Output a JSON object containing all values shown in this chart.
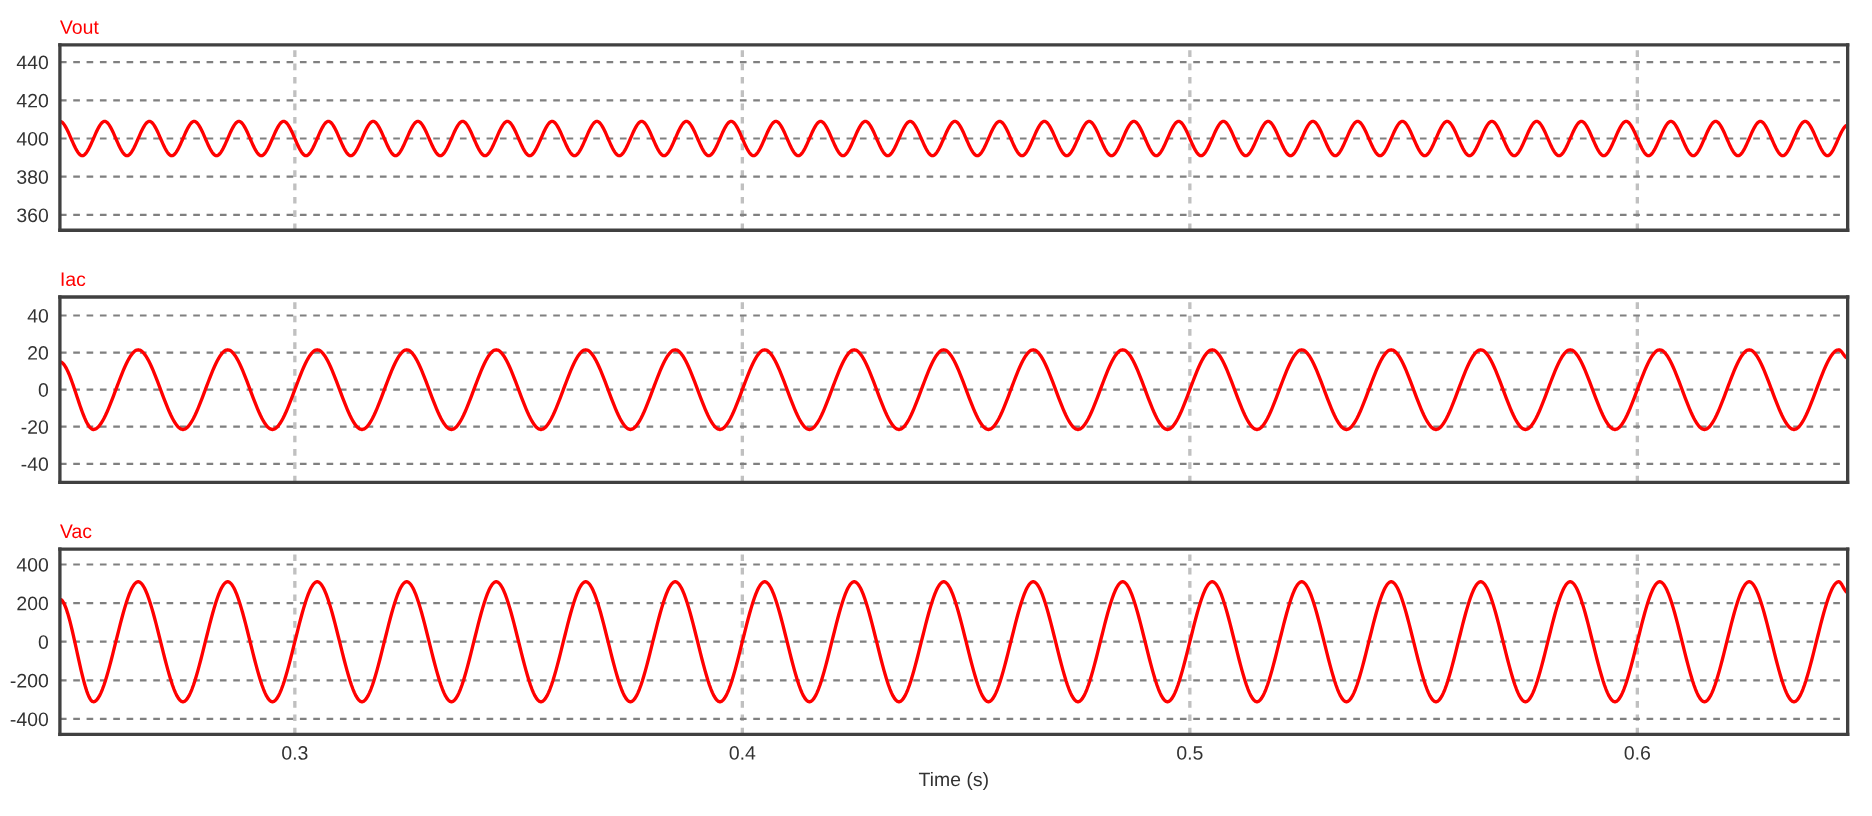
{
  "chart_data": [
    {
      "type": "line",
      "title": "Vout",
      "xlim": [
        0.2475,
        0.647
      ],
      "xticks": [
        0.3,
        0.4,
        0.5,
        0.6
      ],
      "ylim": [
        352,
        449
      ],
      "yticks": [
        360,
        380,
        400,
        420,
        440
      ],
      "grid": true,
      "tick_labels": "y",
      "line_style": "solid",
      "series": [
        {
          "color": "#ff0000",
          "x": [
            0.2475,
            0.2525,
            0.2575,
            0.2625,
            0.2675,
            0.2725,
            0.2775,
            0.2825,
            0.2875,
            0.2925,
            0.2975,
            0.3025,
            0.3075,
            0.3125,
            0.3175,
            0.3225,
            0.3275,
            0.3325,
            0.3375,
            0.3425,
            0.3475,
            0.3525,
            0.3575,
            0.3625,
            0.3675,
            0.3725,
            0.3775,
            0.3825,
            0.3875,
            0.3925,
            0.3975,
            0.4025,
            0.4075,
            0.4125,
            0.4175,
            0.4225,
            0.4275,
            0.4325,
            0.4375,
            0.4425,
            0.4475,
            0.4525,
            0.4575,
            0.4625,
            0.4675,
            0.4725,
            0.4775,
            0.4825,
            0.4875,
            0.4925,
            0.4975,
            0.5025,
            0.5075,
            0.5125,
            0.5175,
            0.5225,
            0.5275,
            0.5325,
            0.5375,
            0.5425,
            0.5475,
            0.5525,
            0.5575,
            0.5625,
            0.5675,
            0.5725,
            0.5775,
            0.5825,
            0.5875,
            0.5925,
            0.5975,
            0.6025,
            0.6075,
            0.6125,
            0.6175,
            0.6225,
            0.6275,
            0.6325,
            0.6375,
            0.6425,
            0.647
          ],
          "values": [
            409,
            391,
            409,
            391,
            409,
            391,
            409,
            391,
            409,
            391,
            409,
            391,
            409,
            391,
            409,
            391,
            409,
            391,
            409,
            391,
            409,
            391,
            409,
            391,
            409,
            391,
            409,
            391,
            409,
            391,
            409,
            391,
            409,
            391,
            409,
            391,
            409,
            391,
            409,
            391,
            409,
            391,
            409,
            391,
            409,
            391,
            409,
            391,
            409,
            391,
            409,
            391,
            409,
            391,
            409,
            391,
            409,
            391,
            409,
            391,
            409,
            391,
            409,
            391,
            409,
            391,
            409,
            391,
            409,
            391,
            409,
            391,
            409,
            391,
            409,
            391,
            409,
            391,
            409,
            391,
            407
          ]
        }
      ]
    },
    {
      "type": "line",
      "title": "Iac",
      "xlim": [
        0.2475,
        0.647
      ],
      "xticks": [
        0.3,
        0.4,
        0.5,
        0.6
      ],
      "ylim": [
        -50,
        50
      ],
      "yticks": [
        -40,
        -20,
        0,
        20,
        40
      ],
      "grid": true,
      "tick_labels": "y",
      "line_style": "solid",
      "series": [
        {
          "color": "#ff0000",
          "x": [
            0.2475,
            0.255,
            0.265,
            0.275,
            0.285,
            0.295,
            0.305,
            0.315,
            0.325,
            0.335,
            0.345,
            0.355,
            0.365,
            0.375,
            0.385,
            0.395,
            0.405,
            0.415,
            0.425,
            0.435,
            0.445,
            0.455,
            0.465,
            0.475,
            0.485,
            0.495,
            0.505,
            0.515,
            0.525,
            0.535,
            0.545,
            0.555,
            0.565,
            0.575,
            0.585,
            0.595,
            0.605,
            0.615,
            0.625,
            0.635,
            0.645,
            0.647
          ],
          "values": [
            15,
            -21.5,
            21.5,
            -21.5,
            21.5,
            -21.5,
            21.5,
            -21.5,
            21.5,
            -21.5,
            21.5,
            -21.5,
            21.5,
            -21.5,
            21.5,
            -21.5,
            21.5,
            -21.5,
            21.5,
            -21.5,
            21.5,
            -21.5,
            21.5,
            -21.5,
            21.5,
            -21.5,
            21.5,
            -21.5,
            21.5,
            -21.5,
            21.5,
            -21.5,
            21.5,
            -21.5,
            21.5,
            -21.5,
            21.5,
            -21.5,
            21.5,
            -21.5,
            21.5,
            17
          ]
        }
      ]
    },
    {
      "type": "line",
      "title": "Vac",
      "xlabel": "Time (s)",
      "xlim": [
        0.2475,
        0.647
      ],
      "xticks": [
        0.3,
        0.4,
        0.5,
        0.6
      ],
      "ylim": [
        -480,
        480
      ],
      "yticks": [
        -400,
        -200,
        0,
        200,
        400
      ],
      "grid": true,
      "line_style": "solid",
      "series": [
        {
          "color": "#ff0000",
          "x": [
            0.2475,
            0.255,
            0.265,
            0.275,
            0.285,
            0.295,
            0.305,
            0.315,
            0.325,
            0.335,
            0.345,
            0.355,
            0.365,
            0.375,
            0.385,
            0.395,
            0.405,
            0.415,
            0.425,
            0.435,
            0.445,
            0.455,
            0.465,
            0.475,
            0.485,
            0.495,
            0.505,
            0.515,
            0.525,
            0.535,
            0.545,
            0.555,
            0.565,
            0.575,
            0.585,
            0.595,
            0.605,
            0.615,
            0.625,
            0.635,
            0.645,
            0.647
          ],
          "values": [
            220,
            -311,
            311,
            -311,
            311,
            -311,
            311,
            -311,
            311,
            -311,
            311,
            -311,
            311,
            -311,
            311,
            -311,
            311,
            -311,
            311,
            -311,
            311,
            -311,
            311,
            -311,
            311,
            -311,
            311,
            -311,
            311,
            -311,
            311,
            -311,
            311,
            -311,
            311,
            -311,
            311,
            -311,
            311,
            -311,
            311,
            255
          ]
        }
      ]
    }
  ]
}
